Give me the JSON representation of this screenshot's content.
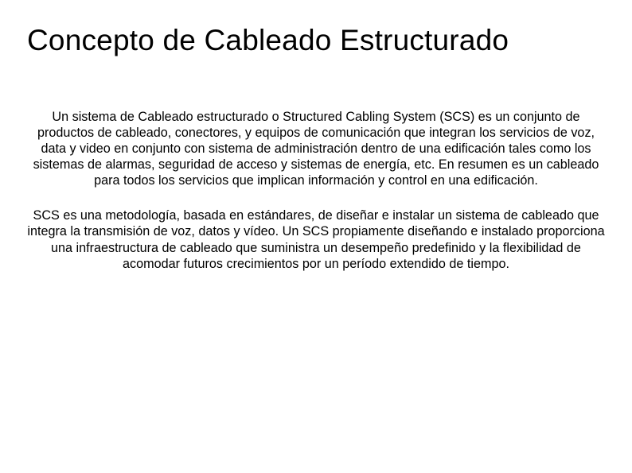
{
  "title": "Concepto de Cableado Estructurado",
  "paragraph1": "Un sistema de Cableado estructurado o Structured Cabling System (SCS) es un conjunto de productos de cableado, conectores, y equipos de comunicación que integran los servicios de voz, data y video en conjunto con sistema de administración dentro de una edificación tales como los sistemas de alarmas, seguridad de acceso y sistemas de energía, etc. En resumen es un cableado para todos los servicios que implican información y control en una edificación.",
  "paragraph2": "SCS es una metodología, basada en estándares, de diseñar e instalar un sistema de cableado que integra la transmisión de voz, datos y vídeo. Un SCS propiamente diseñando e instalado proporciona una infraestructura de cableado que suministra un desempeño predefinido y la flexibilidad de acomodar futuros crecimientos por un período extendido de tiempo."
}
